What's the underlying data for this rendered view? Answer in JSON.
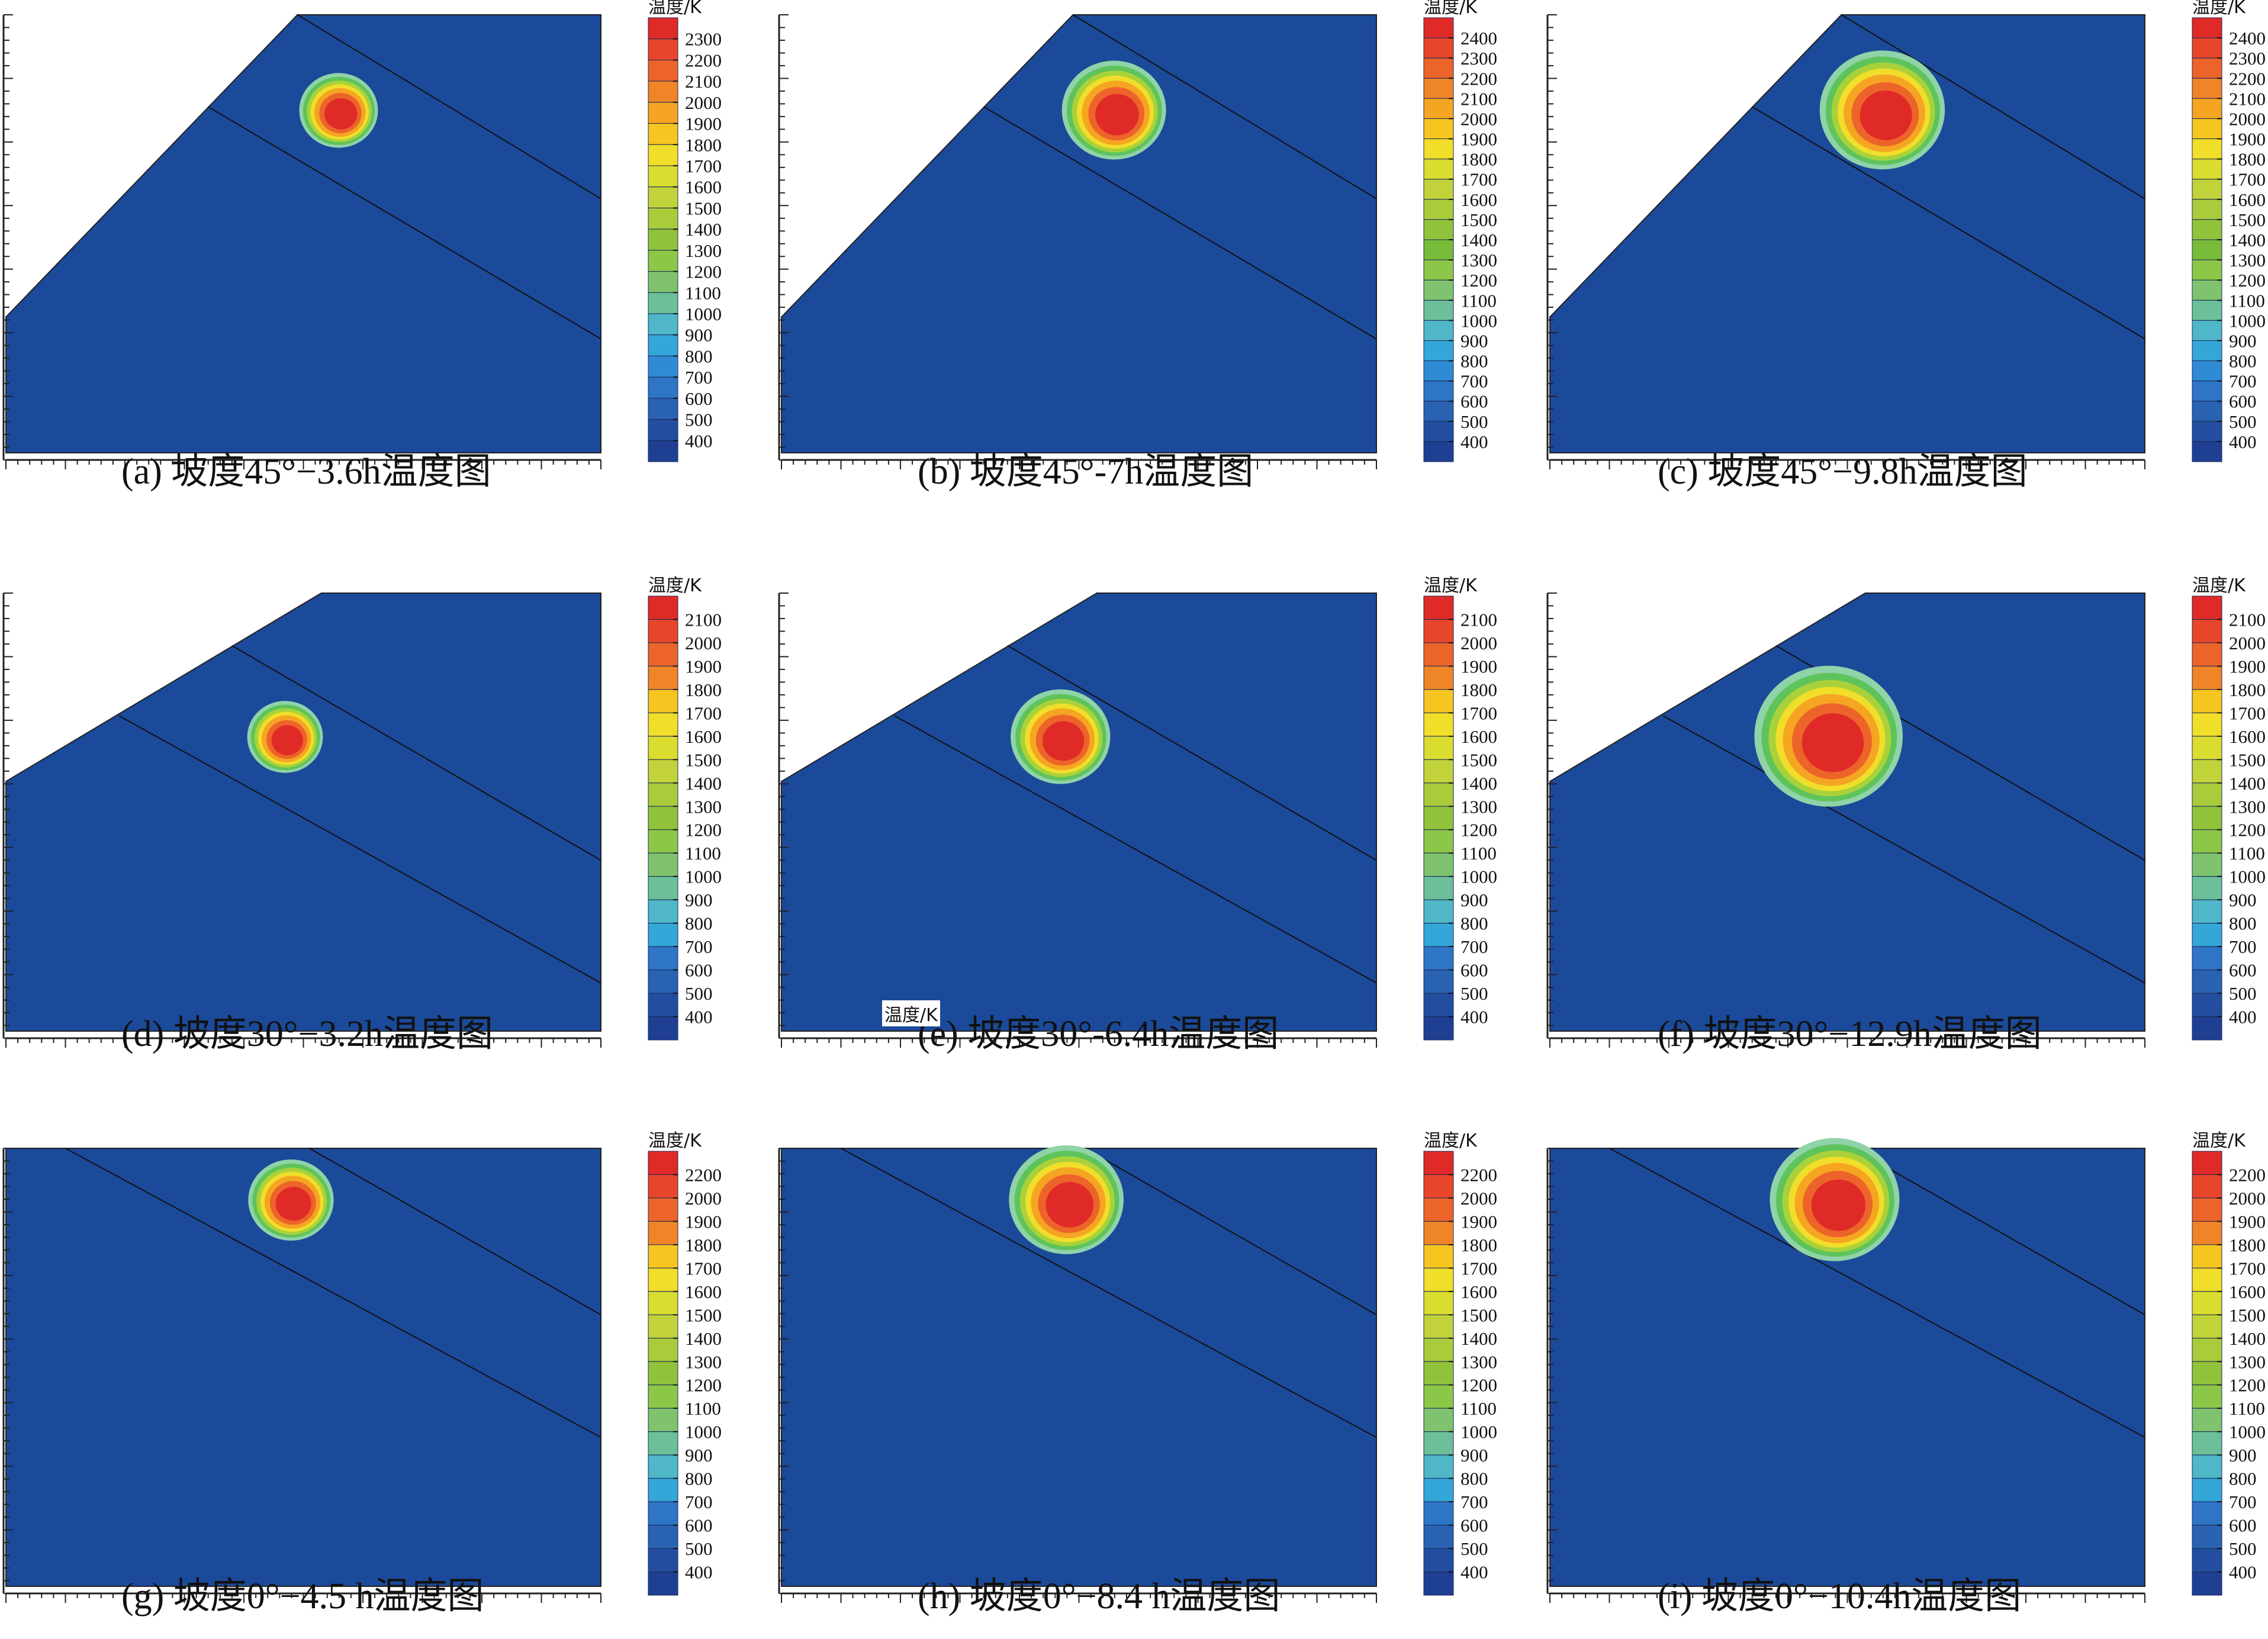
{
  "colorbar_unit": "温度/K",
  "colors": {
    "background_slope": "#1c4a9a",
    "frame": "#222222",
    "white": "#ffffff"
  },
  "stray_label": "温度/K",
  "chart_data": [
    {
      "id": "a",
      "type": "heatmap",
      "caption": "(a) 坡度45°−3.6h温度图",
      "slope_deg": 45,
      "time_h": 3.6,
      "colorbar": {
        "title": "温度/K",
        "ticks": [
          2300,
          2200,
          2100,
          2000,
          1900,
          1800,
          1700,
          1600,
          1500,
          1400,
          1300,
          1200,
          1100,
          1000,
          900,
          800,
          700,
          600,
          500,
          400
        ],
        "range": [
          400,
          2400
        ]
      }
    },
    {
      "id": "b",
      "type": "heatmap",
      "caption": "(b) 坡度45°-7h温度图",
      "slope_deg": 45,
      "time_h": 7,
      "colorbar": {
        "title": "温度/K",
        "ticks": [
          2400,
          2300,
          2200,
          2100,
          2000,
          1900,
          1800,
          1700,
          1600,
          1500,
          1400,
          1300,
          1200,
          1100,
          1000,
          900,
          800,
          700,
          600,
          500,
          400
        ],
        "range": [
          400,
          2400
        ]
      }
    },
    {
      "id": "c",
      "type": "heatmap",
      "caption": "(c) 坡度45°−9.8h温度图",
      "slope_deg": 45,
      "time_h": 9.8,
      "colorbar": {
        "title": "温度/K",
        "ticks": [
          2400,
          2300,
          2200,
          2100,
          2000,
          1900,
          1800,
          1700,
          1600,
          1500,
          1400,
          1300,
          1200,
          1100,
          1000,
          900,
          800,
          700,
          600,
          500,
          400
        ],
        "range": [
          400,
          2400
        ]
      }
    },
    {
      "id": "d",
      "type": "heatmap",
      "caption": "(d) 坡度30°−3.2h温度图",
      "slope_deg": 30,
      "time_h": 3.2,
      "colorbar": {
        "title": "温度/K",
        "ticks": [
          2100,
          2000,
          1900,
          1800,
          1700,
          1600,
          1500,
          1400,
          1300,
          1200,
          1100,
          1000,
          900,
          800,
          700,
          600,
          500,
          400
        ],
        "range": [
          400,
          2100
        ]
      }
    },
    {
      "id": "e",
      "type": "heatmap",
      "caption": "(e) 坡度30°-6.4h温度图",
      "slope_deg": 30,
      "time_h": 6.4,
      "colorbar": {
        "title": "温度/K",
        "ticks": [
          2100,
          2000,
          1900,
          1800,
          1700,
          1600,
          1500,
          1400,
          1300,
          1200,
          1100,
          1000,
          900,
          800,
          700,
          600,
          500,
          400
        ],
        "range": [
          400,
          2100
        ]
      }
    },
    {
      "id": "f",
      "type": "heatmap",
      "caption": "(f) 坡度30°−12.9h温度图",
      "slope_deg": 30,
      "time_h": 12.9,
      "colorbar": {
        "title": "温度/K",
        "ticks": [
          2100,
          2000,
          1900,
          1800,
          1700,
          1600,
          1500,
          1400,
          1300,
          1200,
          1100,
          1000,
          900,
          800,
          700,
          600,
          500,
          400
        ],
        "range": [
          400,
          2100
        ]
      }
    },
    {
      "id": "g",
      "type": "heatmap",
      "caption": "(g) 坡度0°−4.5 h温度图",
      "slope_deg": 0,
      "time_h": 4.5,
      "colorbar": {
        "title": "温度/K",
        "ticks": [
          2200,
          2000,
          1900,
          1800,
          1700,
          1600,
          1500,
          1400,
          1300,
          1200,
          1100,
          1000,
          900,
          800,
          700,
          600,
          500,
          400
        ],
        "range": [
          400,
          2300
        ]
      }
    },
    {
      "id": "h",
      "type": "heatmap",
      "caption": "(h) 坡度0°−8.4 h温度图",
      "slope_deg": 0,
      "time_h": 8.4,
      "colorbar": {
        "title": "温度/K",
        "ticks": [
          2200,
          2000,
          1900,
          1800,
          1700,
          1600,
          1500,
          1400,
          1300,
          1200,
          1100,
          1000,
          900,
          800,
          700,
          600,
          500,
          400
        ],
        "range": [
          400,
          2300
        ]
      }
    },
    {
      "id": "i",
      "type": "heatmap",
      "caption": "(i) 坡度0°−10.4h温度图",
      "slope_deg": 0,
      "time_h": 10.4,
      "colorbar": {
        "title": "温度/K",
        "ticks": [
          2200,
          2000,
          1900,
          1800,
          1700,
          1600,
          1500,
          1400,
          1300,
          1200,
          1100,
          1000,
          900,
          800,
          700,
          600,
          500,
          400
        ],
        "range": [
          400,
          2300
        ]
      }
    }
  ]
}
